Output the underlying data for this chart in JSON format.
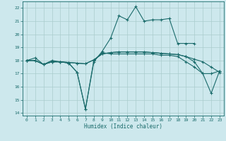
{
  "title": "",
  "xlabel": "Humidex (Indice chaleur)",
  "background_color": "#cde8ed",
  "grid_color": "#aacccc",
  "line_color": "#1a6b6b",
  "xlim": [
    -0.5,
    23.5
  ],
  "ylim": [
    13.8,
    22.5
  ],
  "yticks": [
    14,
    15,
    16,
    17,
    18,
    19,
    20,
    21,
    22
  ],
  "xticks": [
    0,
    1,
    2,
    3,
    4,
    5,
    6,
    7,
    8,
    9,
    10,
    11,
    12,
    13,
    14,
    15,
    16,
    17,
    18,
    19,
    20,
    21,
    22,
    23
  ],
  "line1_x": [
    0,
    1,
    2,
    3,
    4,
    5,
    6,
    7,
    8,
    9,
    10,
    11,
    12,
    13,
    14,
    15,
    16,
    17,
    18,
    19,
    20,
    21,
    22,
    23
  ],
  "line1_y": [
    18.0,
    18.2,
    17.7,
    18.0,
    17.9,
    17.8,
    17.1,
    14.3,
    18.0,
    18.6,
    18.5,
    18.5,
    18.5,
    18.5,
    18.5,
    18.5,
    18.4,
    18.4,
    18.3,
    17.9,
    17.5,
    17.0,
    17.0,
    17.2
  ],
  "line2_x": [
    0,
    1,
    2,
    3,
    4,
    5,
    6,
    7,
    8,
    9,
    10,
    11,
    12,
    13,
    14,
    15,
    16,
    17,
    18,
    19,
    20
  ],
  "line2_y": [
    18.0,
    18.0,
    17.7,
    17.9,
    17.9,
    17.8,
    17.1,
    14.3,
    17.9,
    18.7,
    19.7,
    21.4,
    21.1,
    22.1,
    21.0,
    21.1,
    21.1,
    21.2,
    19.3,
    19.3,
    19.3
  ],
  "line3_x": [
    0,
    1,
    2,
    3,
    4,
    5,
    6,
    7,
    8,
    9,
    10,
    11,
    12,
    13,
    14,
    15,
    16,
    17,
    18,
    19,
    20,
    21,
    22,
    23
  ],
  "line3_y": [
    18.0,
    18.0,
    17.7,
    17.9,
    17.9,
    17.85,
    17.8,
    17.75,
    18.05,
    18.5,
    18.6,
    18.65,
    18.65,
    18.65,
    18.65,
    18.6,
    18.55,
    18.5,
    18.45,
    18.3,
    18.1,
    17.9,
    17.5,
    17.1
  ],
  "line4_x": [
    0,
    1,
    2,
    3,
    4,
    5,
    6,
    7,
    8,
    9,
    10,
    11,
    12,
    13,
    14,
    15,
    16,
    17,
    18,
    19,
    20,
    21,
    22,
    23
  ],
  "line4_y": [
    18.0,
    18.0,
    17.7,
    17.9,
    17.9,
    17.85,
    17.8,
    17.75,
    18.05,
    18.5,
    18.6,
    18.65,
    18.65,
    18.65,
    18.65,
    18.6,
    18.55,
    18.5,
    18.45,
    18.3,
    17.9,
    17.0,
    15.5,
    17.2
  ]
}
